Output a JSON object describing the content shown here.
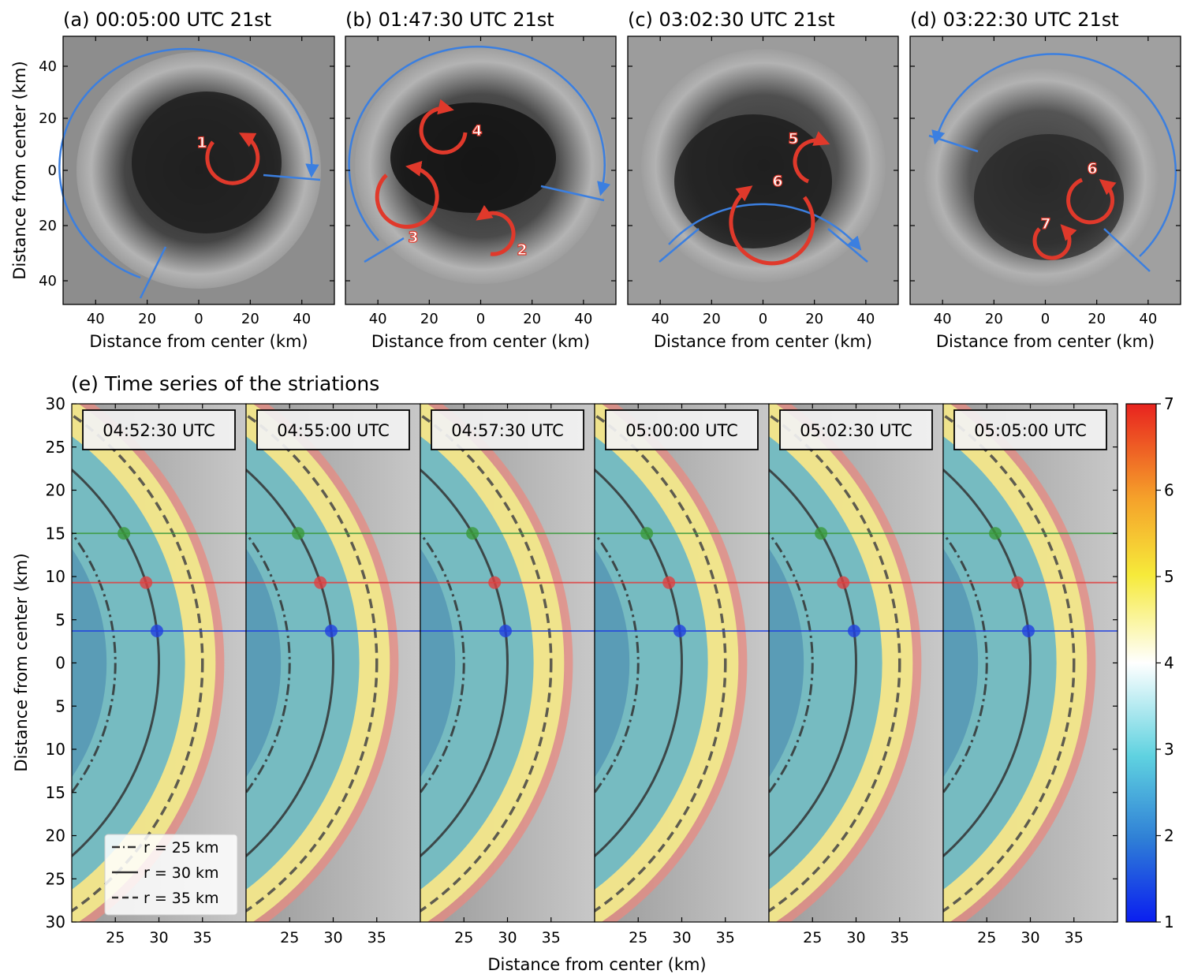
{
  "top_panels": [
    {
      "title": "(a) 00:05:00 UTC 21st",
      "vortices": [
        {
          "label": "1"
        }
      ]
    },
    {
      "title": "(b) 01:47:30 UTC 21st",
      "vortices": [
        {
          "label": "4"
        },
        {
          "label": "3"
        },
        {
          "label": "2"
        }
      ]
    },
    {
      "title": "(c) 03:02:30 UTC 21st",
      "vortices": [
        {
          "label": "5"
        },
        {
          "label": "6"
        }
      ]
    },
    {
      "title": "(d) 03:22:30 UTC 21st",
      "vortices": [
        {
          "label": "6"
        },
        {
          "label": "7"
        }
      ]
    }
  ],
  "top_axes": {
    "xlabel": "Distance from center (km)",
    "ylabel": "Distance from center (km)",
    "xticks": [
      "40",
      "20",
      "0",
      "20",
      "40"
    ],
    "yticks": [
      "40",
      "20",
      "0",
      "20",
      "40"
    ]
  },
  "bottom": {
    "title": "(e) Time series of the striations",
    "xlabel": "Distance from center (km)",
    "ylabel": "Distance from center (km)",
    "xticks": [
      "25",
      "30",
      "35"
    ],
    "yticks": [
      "30",
      "25",
      "20",
      "15",
      "10",
      "5",
      "0",
      "5",
      "10",
      "15",
      "20",
      "25",
      "30"
    ],
    "time_labels": [
      "04:52:30 UTC",
      "04:55:00 UTC",
      "04:57:30 UTC",
      "05:00:00 UTC",
      "05:02:30 UTC",
      "05:05:00 UTC"
    ],
    "legend": [
      {
        "label": "r = 25 km",
        "style": "dashdot"
      },
      {
        "label": "r = 30 km",
        "style": "solid"
      },
      {
        "label": "r = 35 km",
        "style": "dashed"
      }
    ],
    "horizontal_lines": [
      {
        "color": "#3a9a3a",
        "y_km": 15
      },
      {
        "color": "#e04040",
        "y_km": 9.3
      },
      {
        "color": "#2040e0",
        "y_km": 3.7
      }
    ],
    "colorbar": {
      "min": 1,
      "max": 7,
      "ticks": [
        "7",
        "6",
        "5",
        "4",
        "3",
        "2",
        "1"
      ]
    }
  },
  "chart_data": {
    "type": "line",
    "title": "(e) Time series of the striations",
    "xlabel": "Distance from center (km)",
    "ylabel": "Distance from center (km)",
    "xlim": [
      20,
      40
    ],
    "ylim": [
      -30,
      30
    ],
    "series": [
      {
        "name": "r = 25 km"
      },
      {
        "name": "r = 30 km"
      },
      {
        "name": "r = 35 km"
      }
    ]
  }
}
